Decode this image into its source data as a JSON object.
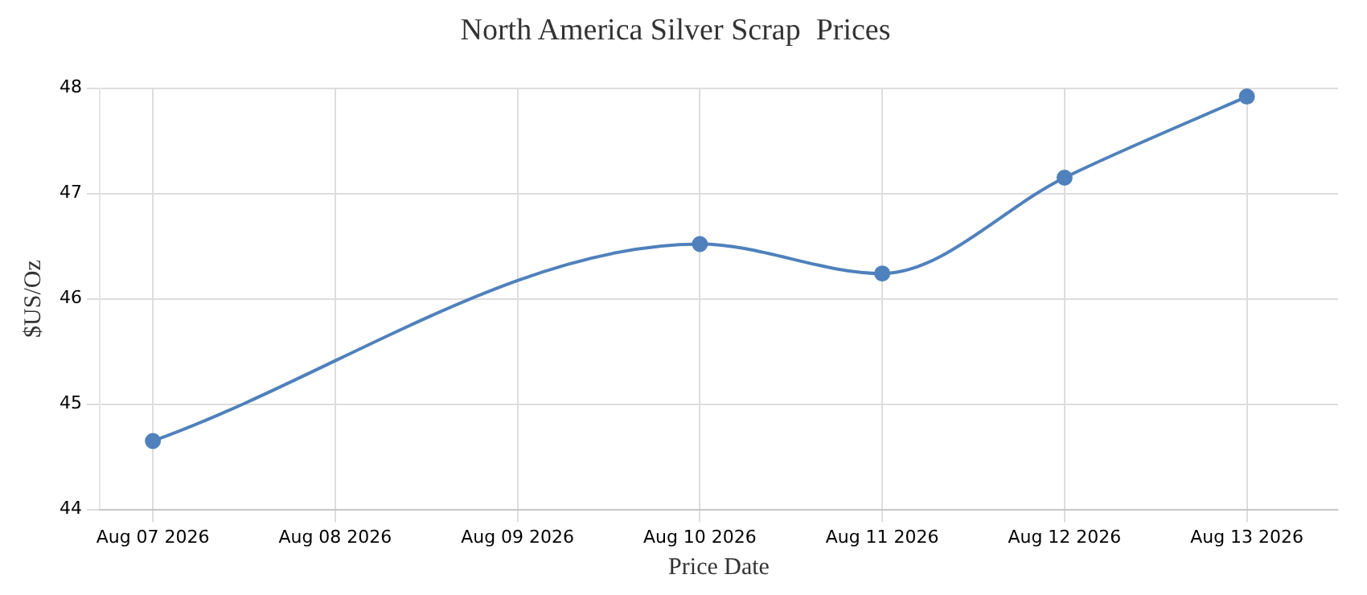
{
  "chart_data": {
    "type": "line",
    "title": "North America Silver Scrap  Prices",
    "xlabel": "Price Date",
    "ylabel": "$US/Oz",
    "x": [
      "2026-08-07",
      "2026-08-10",
      "2026-08-11",
      "2026-08-12",
      "2026-08-13"
    ],
    "series": [
      {
        "color": "#4f81bc",
        "values": [
          44.65,
          46.52,
          46.24,
          47.15,
          47.92
        ]
      }
    ],
    "xlim": [
      "2026-08-06T17:00",
      "2026-08-13T12:00"
    ],
    "xticks": [
      {
        "value": "2026-08-07",
        "label": "Aug 07 2026"
      },
      {
        "value": "2026-08-08",
        "label": "Aug 08 2026"
      },
      {
        "value": "2026-08-09",
        "label": "Aug 09 2026"
      },
      {
        "value": "2026-08-10",
        "label": "Aug 10 2026"
      },
      {
        "value": "2026-08-11",
        "label": "Aug 11 2026"
      },
      {
        "value": "2026-08-12",
        "label": "Aug 12 2026"
      },
      {
        "value": "2026-08-13",
        "label": "Aug 13 2026"
      }
    ],
    "ylim": [
      44,
      48
    ],
    "yticks": [
      44,
      45,
      46,
      47,
      48
    ],
    "grid": true,
    "marker": "circle",
    "line_style": "solid"
  }
}
